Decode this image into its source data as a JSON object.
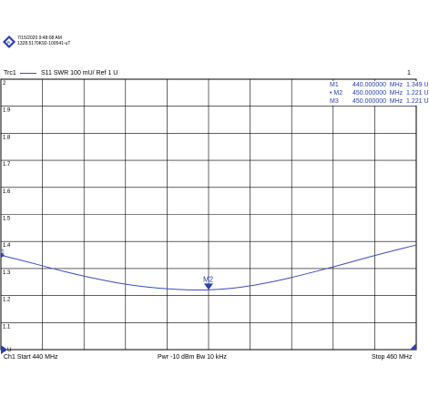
{
  "header": {
    "timestamp": "7/15/2020 9:48:08 AM",
    "instrument_id": "1328.5170K92-100541-uT",
    "trace_label": "Trc1",
    "trace_desc": "S11  SWR  100 mU/ Ref 1 U",
    "window_number": "1"
  },
  "footer": {
    "channel_start": "Ch1  Start  440 MHz",
    "pwr_bw": "Pwr  -10 dBm  Bw  10 kHz",
    "stop": "Stop  460 MHz"
  },
  "markers": [
    {
      "name": "M1",
      "active": false,
      "freq": "440.000000",
      "unit": "MHz",
      "value": "1.349  U"
    },
    {
      "name": "M2",
      "active": true,
      "freq": "450.000000",
      "unit": "MHz",
      "value": "1.221  U"
    },
    {
      "name": "M3",
      "active": false,
      "freq": "450.000000",
      "unit": "MHz",
      "value": "1.221  U"
    }
  ],
  "chart_data": {
    "type": "line",
    "title": "",
    "xlabel": "",
    "ylabel": "",
    "xlim": [
      440,
      460
    ],
    "ylim": [
      1.0,
      2.0
    ],
    "yticks": [
      "2",
      "1.9",
      "1.8",
      "1.7",
      "1.6",
      "1.5",
      "1.4",
      "1.3",
      "1.2",
      "1.1",
      "1 U"
    ],
    "grid": true,
    "series": [
      {
        "name": "Trc1",
        "color": "#3a4ec0",
        "x": [
          440,
          441,
          442,
          443,
          444,
          445,
          446,
          447,
          448,
          449,
          450,
          451,
          452,
          453,
          454,
          455,
          456,
          457,
          458,
          459,
          460
        ],
        "y": [
          1.349,
          1.33,
          1.31,
          1.29,
          1.272,
          1.256,
          1.242,
          1.232,
          1.225,
          1.221,
          1.221,
          1.226,
          1.236,
          1.25,
          1.267,
          1.286,
          1.306,
          1.327,
          1.348,
          1.368,
          1.387
        ]
      }
    ],
    "marker_points": [
      {
        "label": "1",
        "x": 440,
        "y": 1.349
      },
      {
        "label": "M2",
        "x": 450,
        "y": 1.221
      }
    ],
    "ref_marker": {
      "y": 1.0
    }
  }
}
